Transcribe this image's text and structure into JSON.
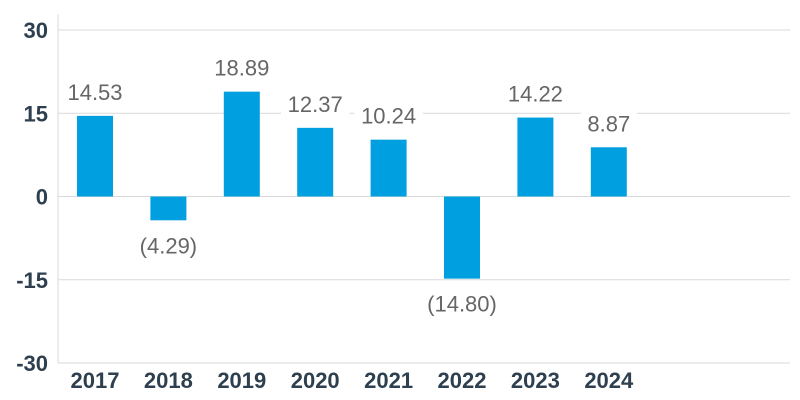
{
  "chart_data": {
    "type": "bar",
    "categories": [
      "2017",
      "2018",
      "2019",
      "2020",
      "2021",
      "2022",
      "2023",
      "2024"
    ],
    "values": [
      14.53,
      -4.29,
      18.89,
      12.37,
      10.24,
      -14.8,
      14.22,
      8.87
    ],
    "data_labels": [
      "14.53",
      "(4.29)",
      "18.89",
      "12.37",
      "10.24",
      "(14.80)",
      "14.22",
      "8.87"
    ],
    "y_ticks": [
      {
        "value": 30,
        "label": "30"
      },
      {
        "value": 15,
        "label": "15"
      },
      {
        "value": 0,
        "label": "0"
      },
      {
        "value": -15,
        "label": "-15"
      },
      {
        "value": -30,
        "label": "-30"
      }
    ],
    "ylim": [
      -30,
      30
    ],
    "grid": true,
    "bar_color": "#009fdf",
    "grid_color": "#d9d9d9"
  }
}
